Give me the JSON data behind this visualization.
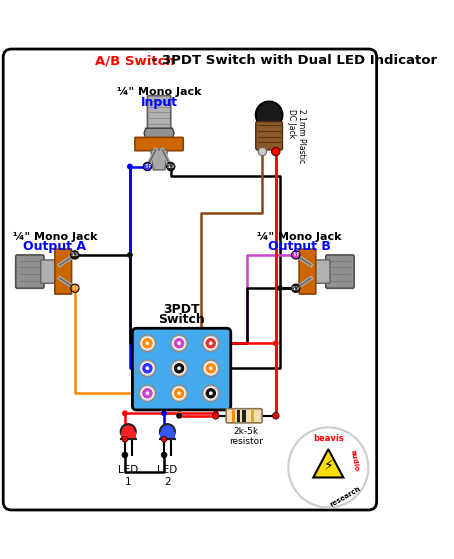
{
  "title_red": "A/B Switch",
  "title_black": " - 3PDT Switch with Dual LED Indicator",
  "bg_color": "#ffffff",
  "border_color": "#000000",
  "fig_width": 4.54,
  "fig_height": 5.59,
  "dpi": 100,
  "input_jack_label1": "¼\" Mono Jack",
  "input_jack_label2": "Input",
  "outputA_label1": "¼\" Mono Jack",
  "outputA_label2": "Output A",
  "outputB_label1": "¼\" Mono Jack",
  "outputB_label2": "Output B",
  "dc_jack_label": "2.1mm Plastic\nDC Jack",
  "switch_label1": "3PDT",
  "switch_label2": "Switch",
  "resistor_label": "2k-5k\nresistor",
  "led1_label": "LED\n1",
  "led2_label": "LED\n2",
  "colors": {
    "blue": "#0000ff",
    "black": "#000000",
    "red": "#ff0000",
    "orange": "#ff8c00",
    "brown": "#8b4513",
    "gray_light": "#aaaaaa",
    "gray_med": "#888888",
    "gray_dark": "#555555",
    "orange_jack": "#cc6600",
    "switch_blue": "#44aaee"
  }
}
